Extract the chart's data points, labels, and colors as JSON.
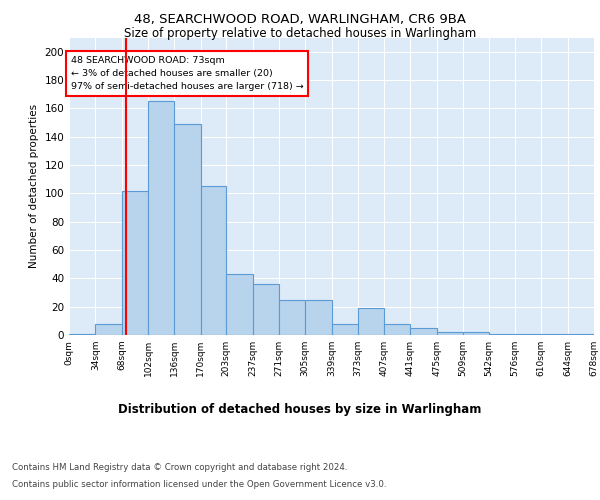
{
  "title1": "48, SEARCHWOOD ROAD, WARLINGHAM, CR6 9BA",
  "title2": "Size of property relative to detached houses in Warlingham",
  "xlabel": "Distribution of detached houses by size in Warlingham",
  "ylabel": "Number of detached properties",
  "annotation_line1": "48 SEARCHWOOD ROAD: 73sqm",
  "annotation_line2": "← 3% of detached houses are smaller (20)",
  "annotation_line3": "97% of semi-detached houses are larger (718) →",
  "bar_edges": [
    0,
    34,
    68,
    102,
    136,
    170,
    203,
    237,
    271,
    305,
    339,
    373,
    407,
    441,
    475,
    509,
    542,
    576,
    610,
    644,
    678
  ],
  "bar_heights": [
    1,
    8,
    102,
    165,
    149,
    105,
    43,
    36,
    25,
    25,
    8,
    19,
    8,
    5,
    2,
    2,
    1,
    1,
    1,
    1
  ],
  "bar_color": "#b8d4ed",
  "bar_edge_color": "#5b9bd5",
  "red_line_x": 73,
  "ylim": [
    0,
    210
  ],
  "yticks": [
    0,
    20,
    40,
    60,
    80,
    100,
    120,
    140,
    160,
    180,
    200
  ],
  "bg_color": "#ddeaf7",
  "plot_bg_color": "#ddeaf7",
  "footer1": "Contains HM Land Registry data © Crown copyright and database right 2024.",
  "footer2": "Contains public sector information licensed under the Open Government Licence v3.0."
}
